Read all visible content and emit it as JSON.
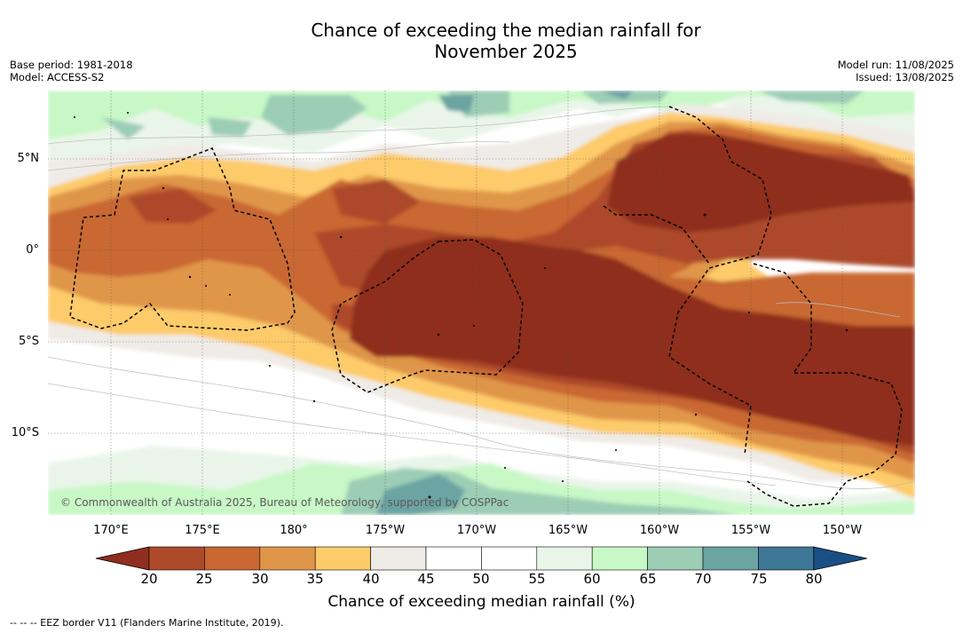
{
  "header": {
    "title_line1": "Chance of exceeding the median rainfall for",
    "title_line2": "November 2025",
    "base_period": "Base period: 1981-2018",
    "model": "Model: ACCESS-S2",
    "model_run": "Model run: 11/08/2025",
    "issued": "Issued: 13/08/2025"
  },
  "map": {
    "credit": "© Commonwealth of Australia 2025, Bureau of Meteorology, supported by COSPPac",
    "lat_labels": [
      "5°N",
      "0°",
      "5°S",
      "10°S"
    ],
    "lon_labels": [
      "170°E",
      "175°E",
      "180°",
      "175°W",
      "170°W",
      "165°W",
      "160°W",
      "155°W",
      "150°W"
    ]
  },
  "colorbar": {
    "ticks": [
      "20",
      "25",
      "30",
      "35",
      "40",
      "45",
      "50",
      "55",
      "60",
      "65",
      "70",
      "75",
      "80"
    ],
    "label": "Chance of exceeding median rainfall (%)",
    "colors": {
      "under": "#8f2e1e",
      "c20_25": "#ad4a2a",
      "c25_30": "#c96833",
      "c30_35": "#e0964a",
      "c35_40": "#fdcb6a",
      "c40_45": "#efebe6",
      "c45_55": "#ffffff",
      "c55_60": "#e9f5e9",
      "c60_65": "#c8f8c6",
      "c65_70": "#9ccdb5",
      "c70_75": "#6ca3a3",
      "c75_80": "#3e7795",
      "over": "#1a4f86"
    }
  },
  "footer": {
    "legend_note": "--  --  -- EEZ border V11 (Flanders Marine Institute, 2019)."
  }
}
